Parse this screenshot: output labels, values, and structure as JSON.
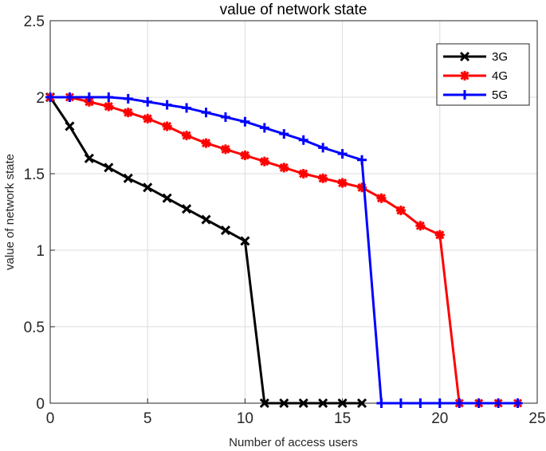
{
  "chart_data": {
    "type": "line",
    "title": "value of network state",
    "xlabel": "Number of access users",
    "ylabel": "value of network state",
    "xlim": [
      0,
      25
    ],
    "ylim": [
      0,
      2.5
    ],
    "xticks": [
      0,
      5,
      10,
      15,
      20,
      25
    ],
    "yticks": [
      0,
      0.5,
      1,
      1.5,
      2,
      2.5
    ],
    "xtick_labels": [
      "0",
      "5",
      "10",
      "15",
      "20",
      "25"
    ],
    "ytick_labels": [
      "0",
      "0.5",
      "1",
      "1.5",
      "2",
      "2.5"
    ],
    "grid": true,
    "legend_position": "top-right",
    "series": [
      {
        "name": "3G",
        "color": "#000000",
        "marker": "x",
        "x": [
          0,
          1,
          2,
          3,
          4,
          5,
          6,
          7,
          8,
          9,
          10,
          11,
          12,
          13,
          14,
          15,
          16
        ],
        "y": [
          2.0,
          1.81,
          1.6,
          1.54,
          1.47,
          1.41,
          1.34,
          1.27,
          1.2,
          1.13,
          1.06,
          0,
          0,
          0,
          0,
          0,
          0
        ]
      },
      {
        "name": "4G",
        "color": "#ff0000",
        "marker": "asterisk",
        "x": [
          0,
          1,
          2,
          3,
          4,
          5,
          6,
          7,
          8,
          9,
          10,
          11,
          12,
          13,
          14,
          15,
          16,
          17,
          18,
          19,
          20,
          21,
          22,
          23,
          24
        ],
        "y": [
          2.0,
          2.0,
          1.97,
          1.94,
          1.9,
          1.86,
          1.81,
          1.75,
          1.7,
          1.66,
          1.62,
          1.58,
          1.54,
          1.5,
          1.47,
          1.44,
          1.41,
          1.34,
          1.26,
          1.16,
          1.1,
          0,
          0,
          0,
          0
        ]
      },
      {
        "name": "5G",
        "color": "#0000ff",
        "marker": "plus",
        "x": [
          0,
          1,
          2,
          3,
          4,
          5,
          6,
          7,
          8,
          9,
          10,
          11,
          12,
          13,
          14,
          15,
          16,
          17,
          18,
          19,
          20,
          21,
          22,
          23,
          24
        ],
        "y": [
          2.0,
          2.0,
          2.0,
          2.0,
          1.99,
          1.97,
          1.95,
          1.93,
          1.9,
          1.87,
          1.84,
          1.8,
          1.76,
          1.72,
          1.67,
          1.63,
          1.59,
          0,
          0,
          0,
          0,
          0,
          0,
          0,
          0
        ]
      }
    ]
  }
}
